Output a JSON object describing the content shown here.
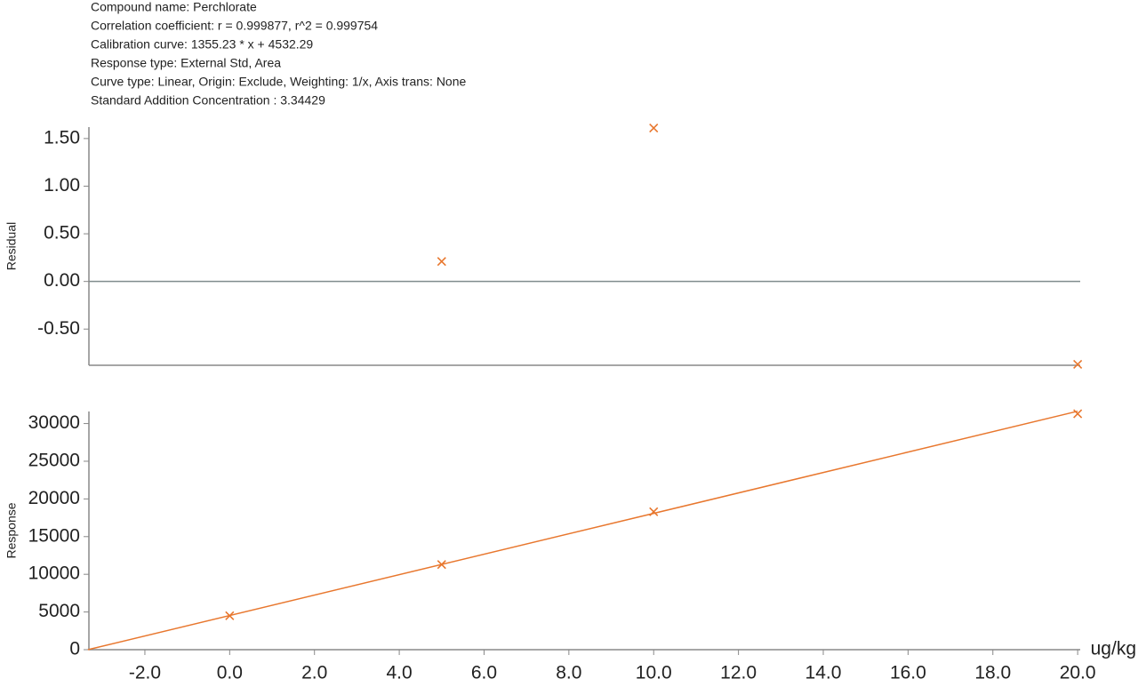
{
  "header": {
    "lines": [
      "Compound name: Perchlorate",
      "Correlation coefficient: r = 0.999877, r^2 = 0.999754",
      "Calibration curve: 1355.23 * x + 4532.29",
      "Response type: External Std, Area",
      "Curve type: Linear, Origin: Exclude, Weighting: 1/x, Axis trans: None",
      "Standard Addition Concentration : 3.34429"
    ]
  },
  "chart_data": [
    {
      "type": "scatter",
      "y_label": "Residual",
      "color": "#e8772e",
      "x": [
        5,
        10,
        20
      ],
      "values": [
        0.21,
        1.61,
        -0.87
      ],
      "xlim": [
        -3.32,
        20.06
      ],
      "ylim": [
        -0.88,
        1.62
      ],
      "yticks": [
        {
          "value": -0.5,
          "label": "-0.50"
        },
        {
          "value": 0,
          "label": "0.00"
        },
        {
          "value": 0.5,
          "label": "0.50"
        },
        {
          "value": 1,
          "label": "1.00"
        },
        {
          "value": 1.5,
          "label": "1.50"
        }
      ]
    },
    {
      "type": "scatter",
      "y_label": "Response",
      "x_label": "ug/kg",
      "color": "#e8772e",
      "x": [
        0,
        5,
        10,
        20
      ],
      "values": [
        4500,
        11300,
        18300,
        31300
      ],
      "fit_line": {
        "x": [
          -3.34429,
          20
        ],
        "values": [
          0,
          31637
        ]
      },
      "xlim": [
        -3.32,
        20.06
      ],
      "ylim": [
        0,
        31600
      ],
      "xticks": [
        {
          "value": -2,
          "label": "-2.0"
        },
        {
          "value": 0,
          "label": "0.0"
        },
        {
          "value": 2,
          "label": "2.0"
        },
        {
          "value": 4,
          "label": "4.0"
        },
        {
          "value": 6,
          "label": "6.0"
        },
        {
          "value": 8,
          "label": "8.0"
        },
        {
          "value": 10,
          "label": "10.0"
        },
        {
          "value": 12,
          "label": "12.0"
        },
        {
          "value": 14,
          "label": "14.0"
        },
        {
          "value": 16,
          "label": "16.0"
        },
        {
          "value": 18,
          "label": "18.0"
        },
        {
          "value": 20,
          "label": "20.0"
        }
      ],
      "yticks": [
        0,
        5000,
        10000,
        15000,
        20000,
        25000,
        30000
      ]
    }
  ]
}
